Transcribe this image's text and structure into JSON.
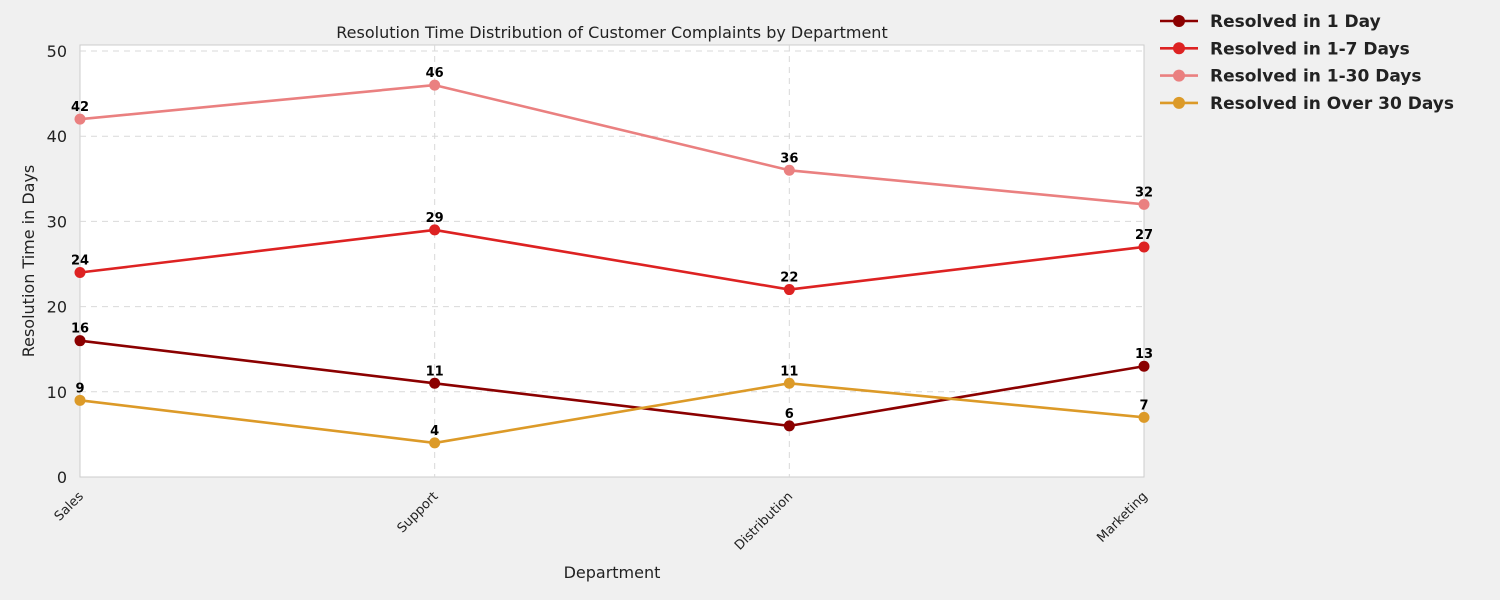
{
  "chart_data": {
    "type": "line",
    "title": "Resolution Time Distribution of Customer Complaints by Department",
    "xlabel": "Department",
    "ylabel": "Resolution Time in Days",
    "categories": [
      "Sales",
      "Support",
      "Distribution",
      "Marketing"
    ],
    "ylim": [
      0,
      50
    ],
    "yticks": [
      0,
      10,
      20,
      30,
      40,
      50
    ],
    "grid": true,
    "legend_position": "outside top-right",
    "series": [
      {
        "name": "Resolved in 1 Day",
        "color": "#8b0000",
        "values": [
          16,
          11,
          6,
          13
        ]
      },
      {
        "name": "Resolved in 1-7 Days",
        "color": "#dd2222",
        "values": [
          24,
          29,
          22,
          27
        ]
      },
      {
        "name": "Resolved in 1-30 Days",
        "color": "#ea8080",
        "values": [
          42,
          46,
          36,
          32
        ]
      },
      {
        "name": "Resolved in Over 30 Days",
        "color": "#dc9a28",
        "values": [
          9,
          4,
          11,
          7
        ]
      }
    ]
  }
}
